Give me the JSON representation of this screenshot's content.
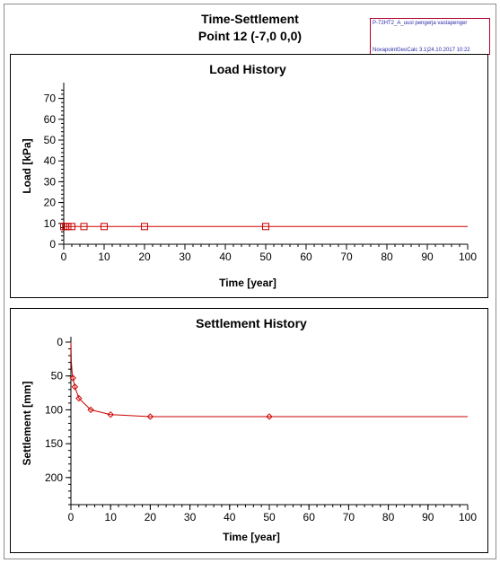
{
  "header": {
    "title_line1": "Time-Settlement",
    "title_line2": "Point 12 (-7,0 0,0)"
  },
  "stamp": {
    "line1": "P-72HT2_A_uusl pengerja vastapenger",
    "line2": "NovapointGeoCalc 3.1|24.10.2017 10:22"
  },
  "colors": {
    "series": "#cc0000",
    "stamp_border": "#b2002a",
    "stamp_text": "#2a2aa8"
  },
  "chart_data": [
    {
      "type": "line",
      "title": "Load History",
      "xlabel": "Time [year]",
      "ylabel": "Load [kPa]",
      "xlim": [
        0,
        100
      ],
      "ylim": [
        0,
        75
      ],
      "xticks": [
        0,
        10,
        20,
        30,
        40,
        50,
        60,
        70,
        80,
        90,
        100
      ],
      "yticks": [
        0,
        10,
        20,
        30,
        40,
        50,
        60,
        70
      ],
      "y_inverted": false,
      "marker": "square",
      "grid": false,
      "series": [
        {
          "x": [
            0,
            0.5,
            1,
            2,
            5,
            10,
            20,
            50,
            100
          ],
          "y": [
            8.5,
            8.5,
            8.5,
            8.5,
            8.5,
            8.5,
            8.5,
            8.5,
            8.5
          ],
          "markers": [
            0,
            0.5,
            1,
            2,
            5,
            10,
            20,
            50
          ]
        }
      ]
    },
    {
      "type": "line",
      "title": "Settlement History",
      "xlabel": "Time [year]",
      "ylabel": "Settlement [mm]",
      "xlim": [
        0,
        100
      ],
      "ylim": [
        0,
        240
      ],
      "xticks": [
        0,
        10,
        20,
        30,
        40,
        50,
        60,
        70,
        80,
        90,
        100
      ],
      "yticks": [
        0,
        50,
        100,
        150,
        200
      ],
      "y_inverted": true,
      "marker": "diamond",
      "grid": false,
      "series": [
        {
          "x": [
            0,
            0.1,
            0.3,
            0.5,
            1,
            2,
            5,
            10,
            20,
            50,
            100
          ],
          "y": [
            0,
            28,
            45,
            53,
            66,
            83,
            100,
            107,
            110,
            110,
            110
          ],
          "markers": [
            0.5,
            1,
            2,
            5,
            10,
            20,
            50
          ]
        }
      ]
    }
  ]
}
